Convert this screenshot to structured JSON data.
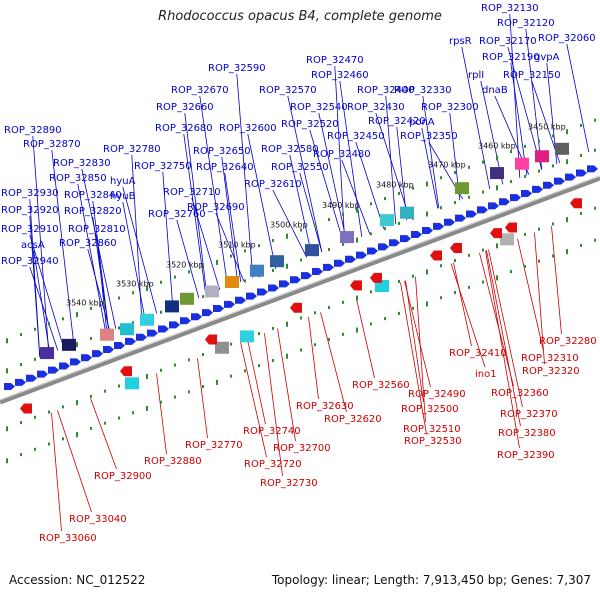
{
  "title": "Rhodococcus opacus B4, complete genome",
  "footer": {
    "accession": "Accession: NC_012522",
    "summary": "Topology: linear; Length: 7,913,450 bp; Genes: 7,307"
  },
  "colors": {
    "forward_label": "#0000cc",
    "reverse_label": "#cc0000",
    "forward_arrow": "#1a2fe0",
    "reverse_arrow": "#e01010",
    "tick": "#2e8b2e",
    "backbone": "#8a8a8a"
  },
  "kbp_labels": [
    "3450 kbp",
    "3460 kbp",
    "3470 kbp",
    "3480 kbp",
    "3490 kbp",
    "3500 kbp",
    "3510 kbp",
    "3520 kbp",
    "3530 kbp",
    "3540 kbp"
  ],
  "forward_labels": [
    "ROP_32130",
    "ROP_32120",
    "ROP_32060",
    "rpsR",
    "ROP_32170",
    "gvpA",
    "ROP_32190",
    "rplI",
    "ROP_32150",
    "dnaB",
    "ROP_32470",
    "ROP_32590",
    "ROP_32460",
    "ROP_32670",
    "ROP_32570",
    "ROP_32440",
    "ROP_32330",
    "ROP_32660",
    "ROP_32540",
    "ROP_32430",
    "ROP_32300",
    "ROP_32890",
    "ROP_32680",
    "ROP_32600",
    "ROP_32520",
    "ROP_32420",
    "ponA",
    "ROP_32870",
    "ROP_32450",
    "ROP_32350",
    "ROP_32780",
    "ROP_32650",
    "ROP_32580",
    "ROP_32480",
    "ROP_32830",
    "ROP_32750",
    "ROP_32640",
    "ROP_32550",
    "ROP_32850",
    "hyuA",
    "ROP_32930",
    "ROP_32840",
    "hyuB",
    "ROP_32710",
    "ROP_32610",
    "ROP_32920",
    "ROP_32820",
    "ROP_32760",
    "ROP_32690",
    "ROP_32910",
    "ROP_32810",
    "acsA",
    "ROP_32860",
    "ROP_32940"
  ],
  "reverse_labels": [
    "ROP_32280",
    "ROP_32410",
    "ROP_32310",
    "ino1",
    "ROP_32320",
    "ROP_32560",
    "ROP_32490",
    "ROP_32360",
    "ROP_32630",
    "ROP_32500",
    "ROP_32620",
    "ROP_32370",
    "ROP_32510",
    "ROP_32740",
    "ROP_32530",
    "ROP_32380",
    "ROP_32770",
    "ROP_32700",
    "ROP_32720",
    "ROP_32390",
    "ROP_32880",
    "ROP_32730",
    "ROP_32900",
    "ROP_33040",
    "ROP_33060"
  ]
}
